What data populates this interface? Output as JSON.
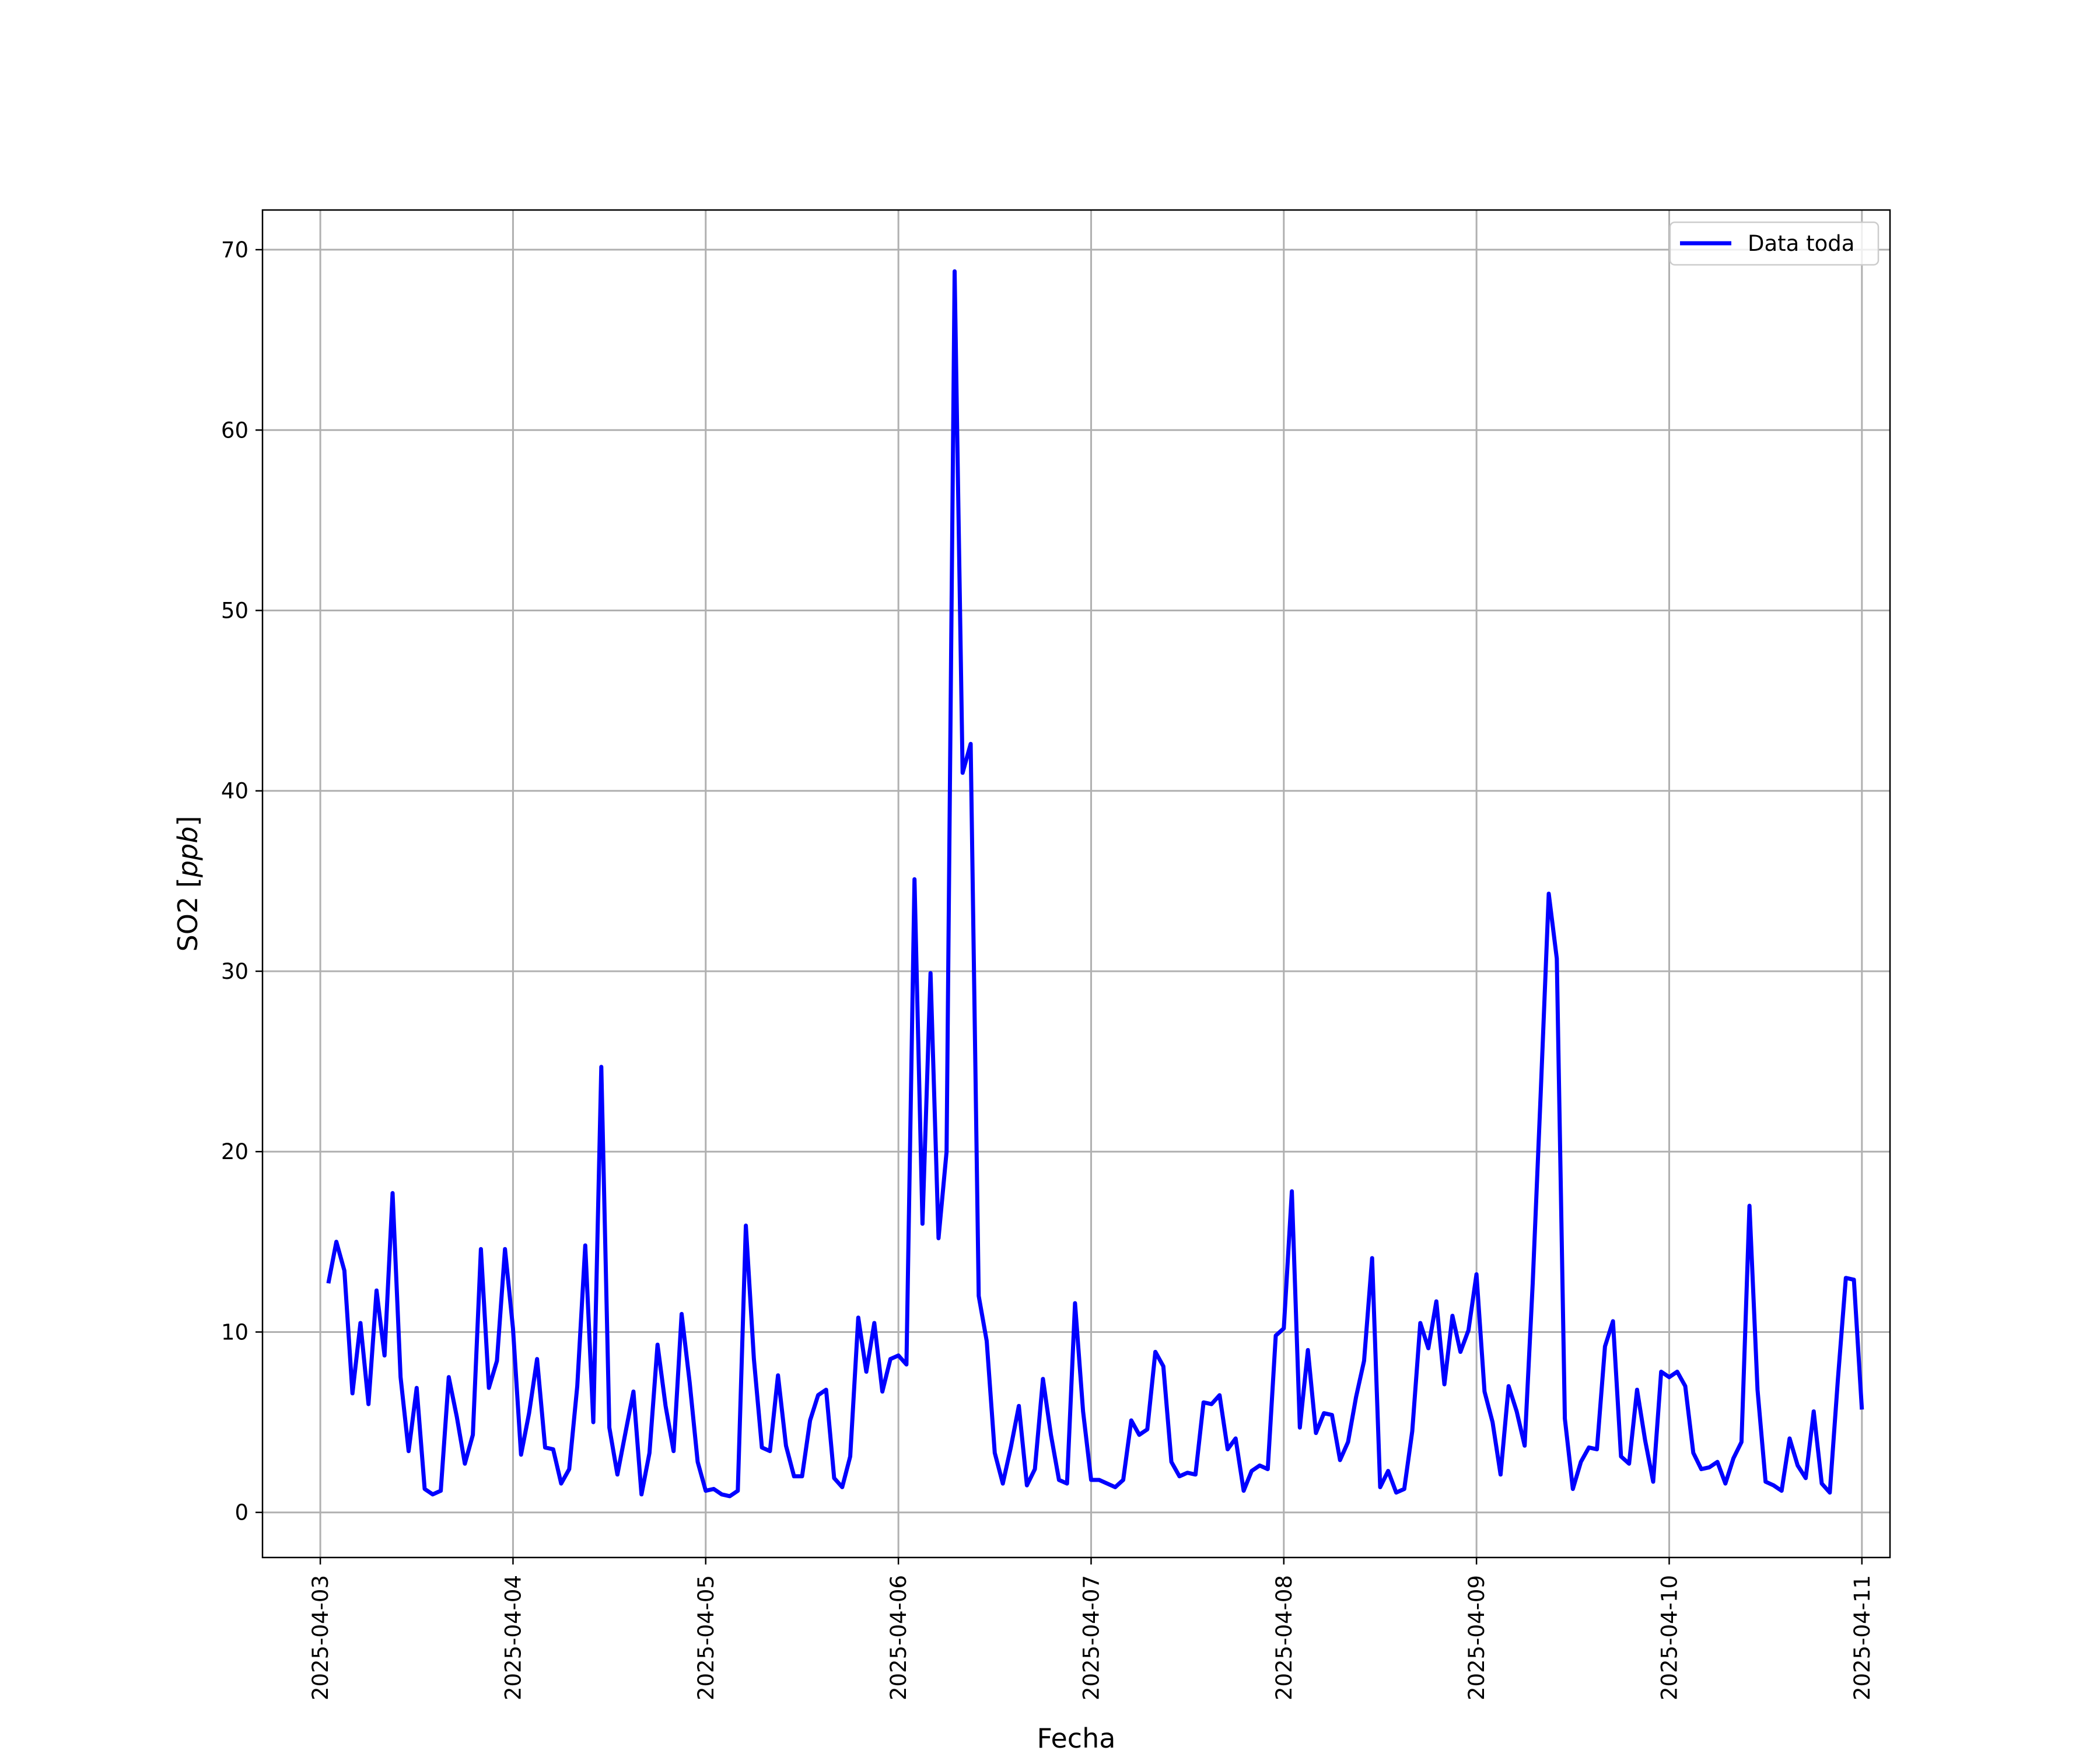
{
  "chart_data": {
    "type": "line",
    "xlabel": "Fecha",
    "ylabel": "SO2 [ppb]",
    "ylabel_prefix": "SO2 [",
    "ylabel_unit": "ppb",
    "ylabel_suffix": "]",
    "xlim": [
      "2025-04-02T16:48",
      "2025-04-11T03:30"
    ],
    "ylim": [
      -2.5,
      72.2
    ],
    "x_ticks": [
      "2025-04-03",
      "2025-04-04",
      "2025-04-05",
      "2025-04-06",
      "2025-04-07",
      "2025-04-08",
      "2025-04-09",
      "2025-04-10",
      "2025-04-11"
    ],
    "y_ticks": [
      0,
      10,
      20,
      30,
      40,
      50,
      60,
      70
    ],
    "y_tick_labels": [
      "0",
      "10",
      "20",
      "30",
      "40",
      "50",
      "60",
      "70"
    ],
    "grid": true,
    "legend": {
      "position": "top-right",
      "entries": [
        "Data toda"
      ]
    },
    "series": [
      {
        "name": "Data toda",
        "color": "#0000ff",
        "x_start": "2025-04-03T01:00",
        "x_end": "2025-04-11T00:00",
        "interval_hours": 1,
        "values": [
          12.7,
          15.0,
          13.4,
          6.6,
          10.5,
          6.0,
          12.3,
          8.7,
          17.7,
          7.5,
          3.4,
          6.9,
          1.3,
          1.0,
          1.2,
          7.5,
          5.3,
          2.7,
          4.3,
          14.6,
          6.9,
          8.4,
          14.6,
          10.2,
          3.2,
          5.5,
          8.5,
          3.6,
          3.5,
          1.6,
          2.4,
          7.0,
          14.8,
          5.0,
          24.7,
          4.7,
          2.1,
          4.4,
          6.7,
          1.0,
          3.3,
          9.3,
          5.9,
          3.4,
          11.0,
          7.2,
          2.8,
          1.2,
          1.3,
          1.0,
          0.9,
          1.2,
          15.9,
          8.5,
          3.6,
          3.4,
          7.6,
          3.7,
          2.0,
          2.0,
          5.1,
          6.5,
          6.8,
          1.9,
          1.4,
          3.1,
          10.8,
          7.8,
          10.5,
          6.7,
          8.5,
          8.7,
          8.2,
          35.1,
          16.0,
          29.9,
          15.2,
          20.0,
          68.8,
          41.0,
          42.6,
          12.0,
          9.5,
          3.3,
          1.6,
          3.6,
          5.9,
          1.5,
          2.4,
          7.4,
          4.3,
          1.8,
          1.6,
          11.6,
          5.6,
          1.8,
          1.8,
          1.6,
          1.4,
          1.8,
          5.1,
          4.3,
          4.6,
          8.9,
          8.1,
          2.8,
          2.0,
          2.2,
          2.1,
          6.1,
          6.0,
          6.5,
          3.5,
          4.1,
          1.2,
          2.3,
          2.6,
          2.4,
          9.8,
          10.2,
          17.8,
          4.7,
          9.0,
          4.4,
          5.5,
          5.4,
          2.9,
          3.9,
          6.4,
          8.4,
          14.1,
          1.4,
          2.3,
          1.1,
          1.3,
          4.5,
          10.5,
          9.1,
          11.7,
          7.1,
          10.9,
          8.9,
          10.1,
          13.2,
          6.7,
          5.0,
          2.1,
          7.0,
          5.6,
          3.7,
          12.7,
          23.3,
          34.3,
          30.7,
          5.2,
          1.3,
          2.8,
          3.6,
          3.5,
          9.2,
          10.6,
          3.1,
          2.7,
          6.8,
          4.0,
          1.7,
          7.8,
          7.5,
          7.8,
          7.0,
          3.3,
          2.4,
          2.5,
          2.8,
          1.6,
          3.0,
          3.9,
          17.0,
          6.8,
          1.7,
          1.5,
          1.2,
          4.1,
          2.6,
          1.9,
          5.6,
          1.6,
          1.1,
          7.3,
          13.0,
          12.9,
          5.7
        ]
      }
    ]
  }
}
